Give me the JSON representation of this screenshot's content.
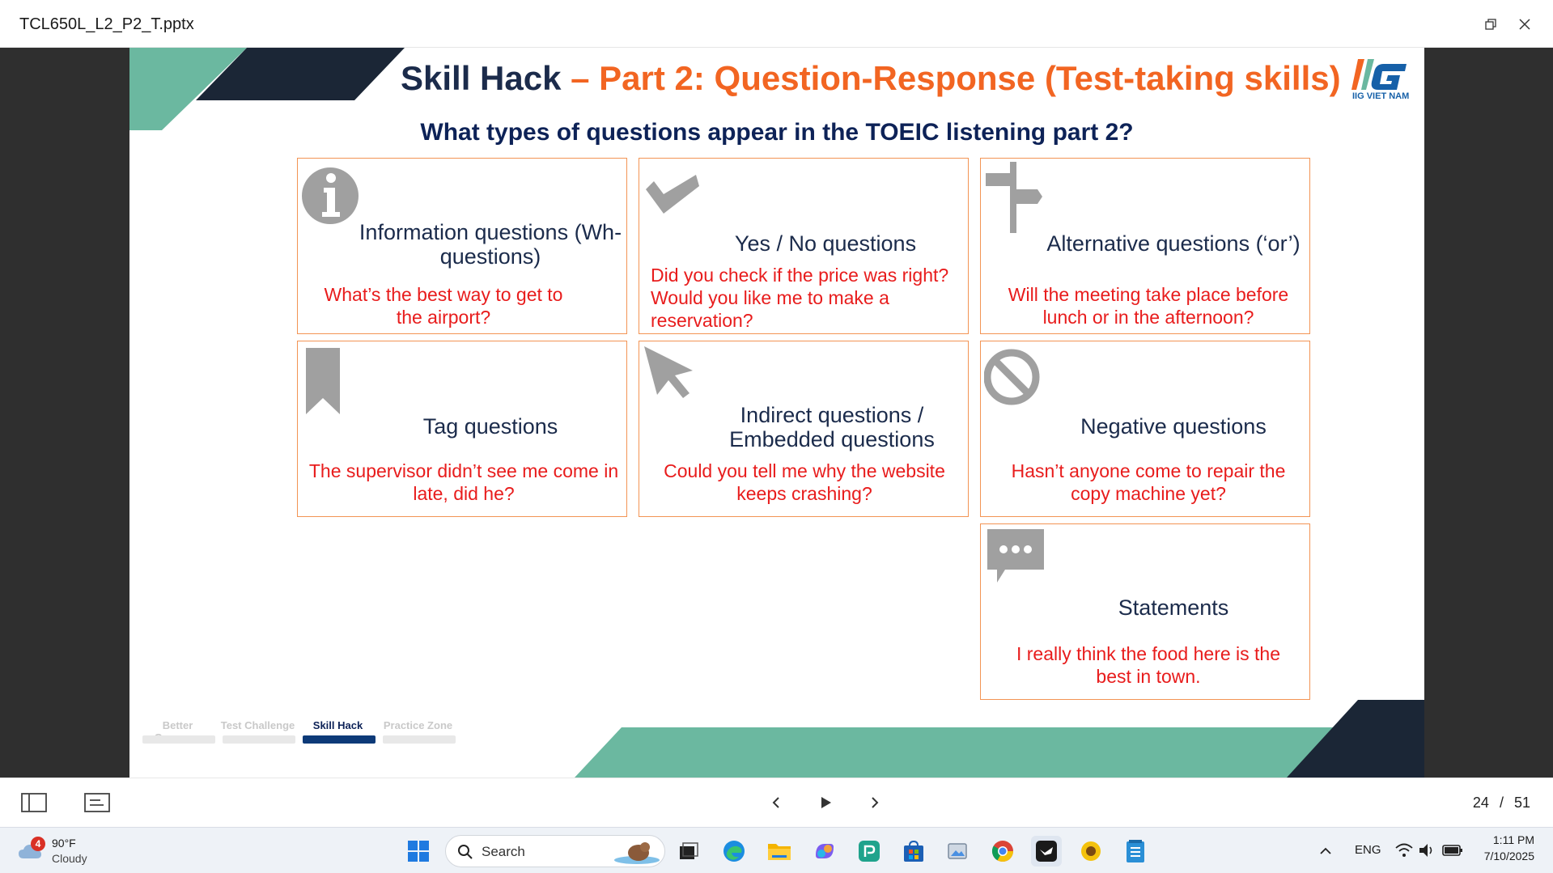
{
  "window": {
    "title": "TCL650L_L2_P2_T.pptx",
    "restore_icon": "restore-icon",
    "close_icon": "close-icon"
  },
  "slide": {
    "title_part1": "Skill Hack",
    "title_part2": " – Part 2: Question-Response (Test-taking skills)",
    "logo_text": "IIG VIET NAM",
    "subtitle": "What types of questions appear in the TOEIC listening part 2?",
    "cards": [
      {
        "heading": "Information questions (Wh-questions)",
        "example": "What’s the best way to get to the airport?",
        "icon": "info-icon"
      },
      {
        "heading": "Yes / No questions",
        "example": "Did you check if the price was right? Would you like me to make a reservation?",
        "icon": "checkmark-icon"
      },
      {
        "heading": "Alternative questions (‘or’)",
        "example": "Will the meeting take place before lunch or in the afternoon?",
        "icon": "signpost-icon"
      },
      {
        "heading": "Tag questions",
        "example": "The supervisor didn’t see me come in late, did he?",
        "icon": "bookmark-icon"
      },
      {
        "heading": "Indirect questions / Embedded questions",
        "example": "Could you tell me why the website keeps crashing?",
        "icon": "cursor-arrow-icon"
      },
      {
        "heading": "Negative questions",
        "example": "Hasn’t anyone come to repair the copy machine yet?",
        "icon": "prohibited-icon"
      },
      {
        "heading": "Statements",
        "example": "I really think the food here is the best in town.",
        "icon": "speech-bubble-icon"
      }
    ],
    "nav_tabs": [
      {
        "label": "Better Grammar",
        "active": false
      },
      {
        "label": "Test Challenge",
        "active": false
      },
      {
        "label": "Skill Hack",
        "active": true
      },
      {
        "label": "Practice Zone",
        "active": false
      }
    ],
    "colors": {
      "dark_navy": "#1b2b4b",
      "orange": "#f26522",
      "teal": "#6bb8a0",
      "red_text": "#e81c1c",
      "card_border": "#f39454"
    }
  },
  "viewer": {
    "page_current": "24",
    "page_separator": "/",
    "page_total": "51"
  },
  "taskbar": {
    "weather_temp": "90°F",
    "weather_desc": "Cloudy",
    "weather_badge": "4",
    "search_placeholder": "Search",
    "language": "ENG",
    "time": "1:11 PM",
    "date": "7/10/2025"
  }
}
